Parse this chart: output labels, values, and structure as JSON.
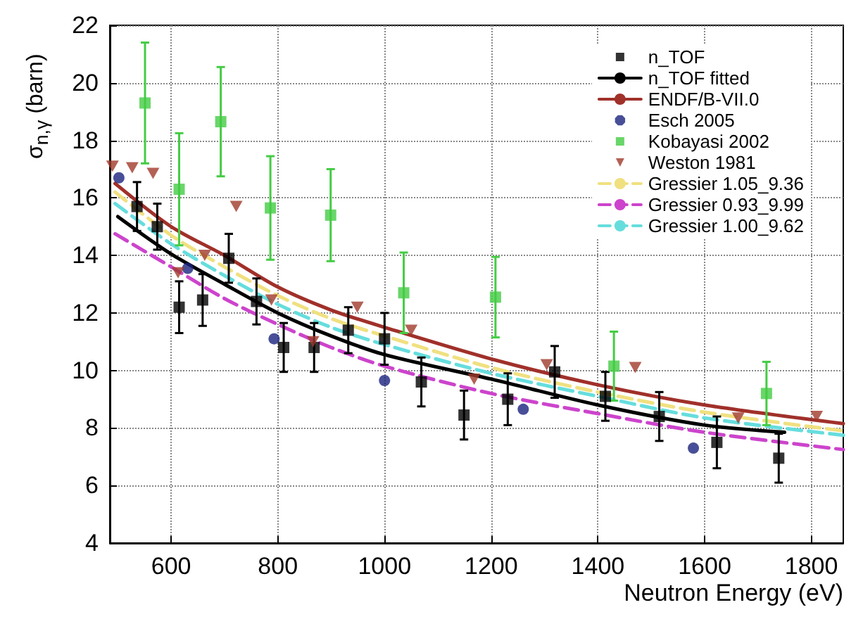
{
  "chart_data": {
    "type": "scatter",
    "xlabel": "Neutron Energy (eV)",
    "ylabel": "σ$_{n,γ}$ (barn)",
    "xlim": [
      485,
      1860
    ],
    "xticks": [
      600,
      800,
      1000,
      1200,
      1400,
      1600,
      1800
    ],
    "ylim": [
      4,
      22
    ],
    "yticks": [
      4,
      6,
      8,
      10,
      12,
      14,
      16,
      18,
      20,
      22
    ],
    "grid": true,
    "legend": "top right",
    "series": [
      {
        "name": "n_TOF",
        "marker": "square",
        "color": "#000000",
        "x": [
          536,
          574,
          615,
          659,
          708,
          760,
          811,
          868,
          932,
          1000,
          1069,
          1149,
          1231,
          1319,
          1414,
          1515,
          1623,
          1739
        ],
        "values": [
          15.7,
          15.0,
          12.2,
          12.45,
          13.9,
          12.4,
          10.8,
          10.8,
          11.4,
          11.1,
          9.6,
          8.45,
          9.0,
          9.95,
          9.1,
          8.4,
          7.5,
          6.95
        ],
        "errors": [
          0.85,
          0.8,
          0.9,
          0.9,
          0.85,
          0.8,
          0.85,
          0.85,
          0.8,
          0.9,
          0.85,
          0.85,
          0.9,
          0.9,
          0.85,
          0.85,
          0.9,
          0.85
        ]
      },
      {
        "name": "n_TOF fitted",
        "type": "line",
        "marker": "none",
        "line_style": "solid",
        "color": "#000000",
        "x": [
          500,
          600,
          700,
          800,
          900,
          1000,
          1200,
          1400,
          1600,
          1750
        ],
        "values": [
          15.35,
          14.05,
          13.0,
          12.0,
          11.2,
          10.55,
          9.7,
          8.8,
          8.1,
          7.85
        ]
      },
      {
        "name": "ENDF/B-VII.0",
        "type": "line",
        "marker": "none",
        "line_style": "solid",
        "color": "#a0302a",
        "x": [
          495,
          600,
          700,
          800,
          900,
          1000,
          1200,
          1400,
          1600,
          1860
        ],
        "values": [
          16.5,
          15.0,
          14.0,
          12.9,
          12.1,
          11.5,
          10.4,
          9.5,
          8.8,
          8.15
        ]
      },
      {
        "name": "Esch 2005",
        "marker": "circle",
        "color": "#1a237e",
        "x": [
          502,
          631,
          793,
          1000,
          1260,
          1579
        ],
        "values": [
          16.7,
          13.55,
          11.1,
          9.65,
          8.65,
          7.3
        ]
      },
      {
        "name": "Kobayasi 2002",
        "marker": "square",
        "color": "#44cc44",
        "x": [
          551,
          615,
          693,
          786,
          899,
          1036,
          1208,
          1430,
          1716
        ],
        "values": [
          19.3,
          16.3,
          18.65,
          15.65,
          15.4,
          12.7,
          12.55,
          10.15,
          9.2
        ],
        "errors": [
          2.1,
          1.95,
          1.9,
          1.8,
          1.6,
          1.4,
          1.4,
          1.2,
          1.1
        ]
      },
      {
        "name": "Weston 1981",
        "marker": "triangle",
        "color": "#a0392a",
        "x": [
          490,
          527,
          566,
          613,
          663,
          722,
          788,
          866,
          949,
          1050,
          1168,
          1304,
          1470,
          1663,
          1810
        ],
        "values": [
          17.1,
          17.05,
          16.85,
          13.4,
          14.0,
          15.7,
          12.45,
          11.0,
          12.2,
          11.4,
          9.7,
          10.2,
          10.1,
          8.35,
          8.4
        ]
      },
      {
        "name": "Gressier 1.05_9.36",
        "type": "line",
        "marker": "none",
        "line_style": "dashed",
        "color": "#f0e080",
        "x": [
          495,
          600,
          700,
          800,
          900,
          1000,
          1200,
          1400,
          1600,
          1860
        ],
        "values": [
          16.2,
          14.7,
          13.6,
          12.6,
          11.8,
          11.2,
          10.1,
          9.25,
          8.55,
          7.9
        ]
      },
      {
        "name": "Gressier 0.93_9.99",
        "type": "line",
        "marker": "none",
        "line_style": "dashed",
        "color": "#cc44cc",
        "x": [
          495,
          600,
          700,
          800,
          900,
          1000,
          1200,
          1400,
          1600,
          1860
        ],
        "values": [
          14.75,
          13.6,
          12.5,
          11.6,
          10.8,
          10.15,
          9.2,
          8.5,
          7.85,
          7.25
        ]
      },
      {
        "name": "Gressier 1.00_9.62",
        "type": "line",
        "marker": "none",
        "line_style": "dashed",
        "color": "#66dddd",
        "x": [
          495,
          600,
          700,
          800,
          900,
          1000,
          1200,
          1400,
          1600,
          1860
        ],
        "values": [
          15.8,
          14.4,
          13.3,
          12.3,
          11.5,
          10.9,
          9.9,
          9.1,
          8.35,
          7.75
        ]
      }
    ]
  }
}
